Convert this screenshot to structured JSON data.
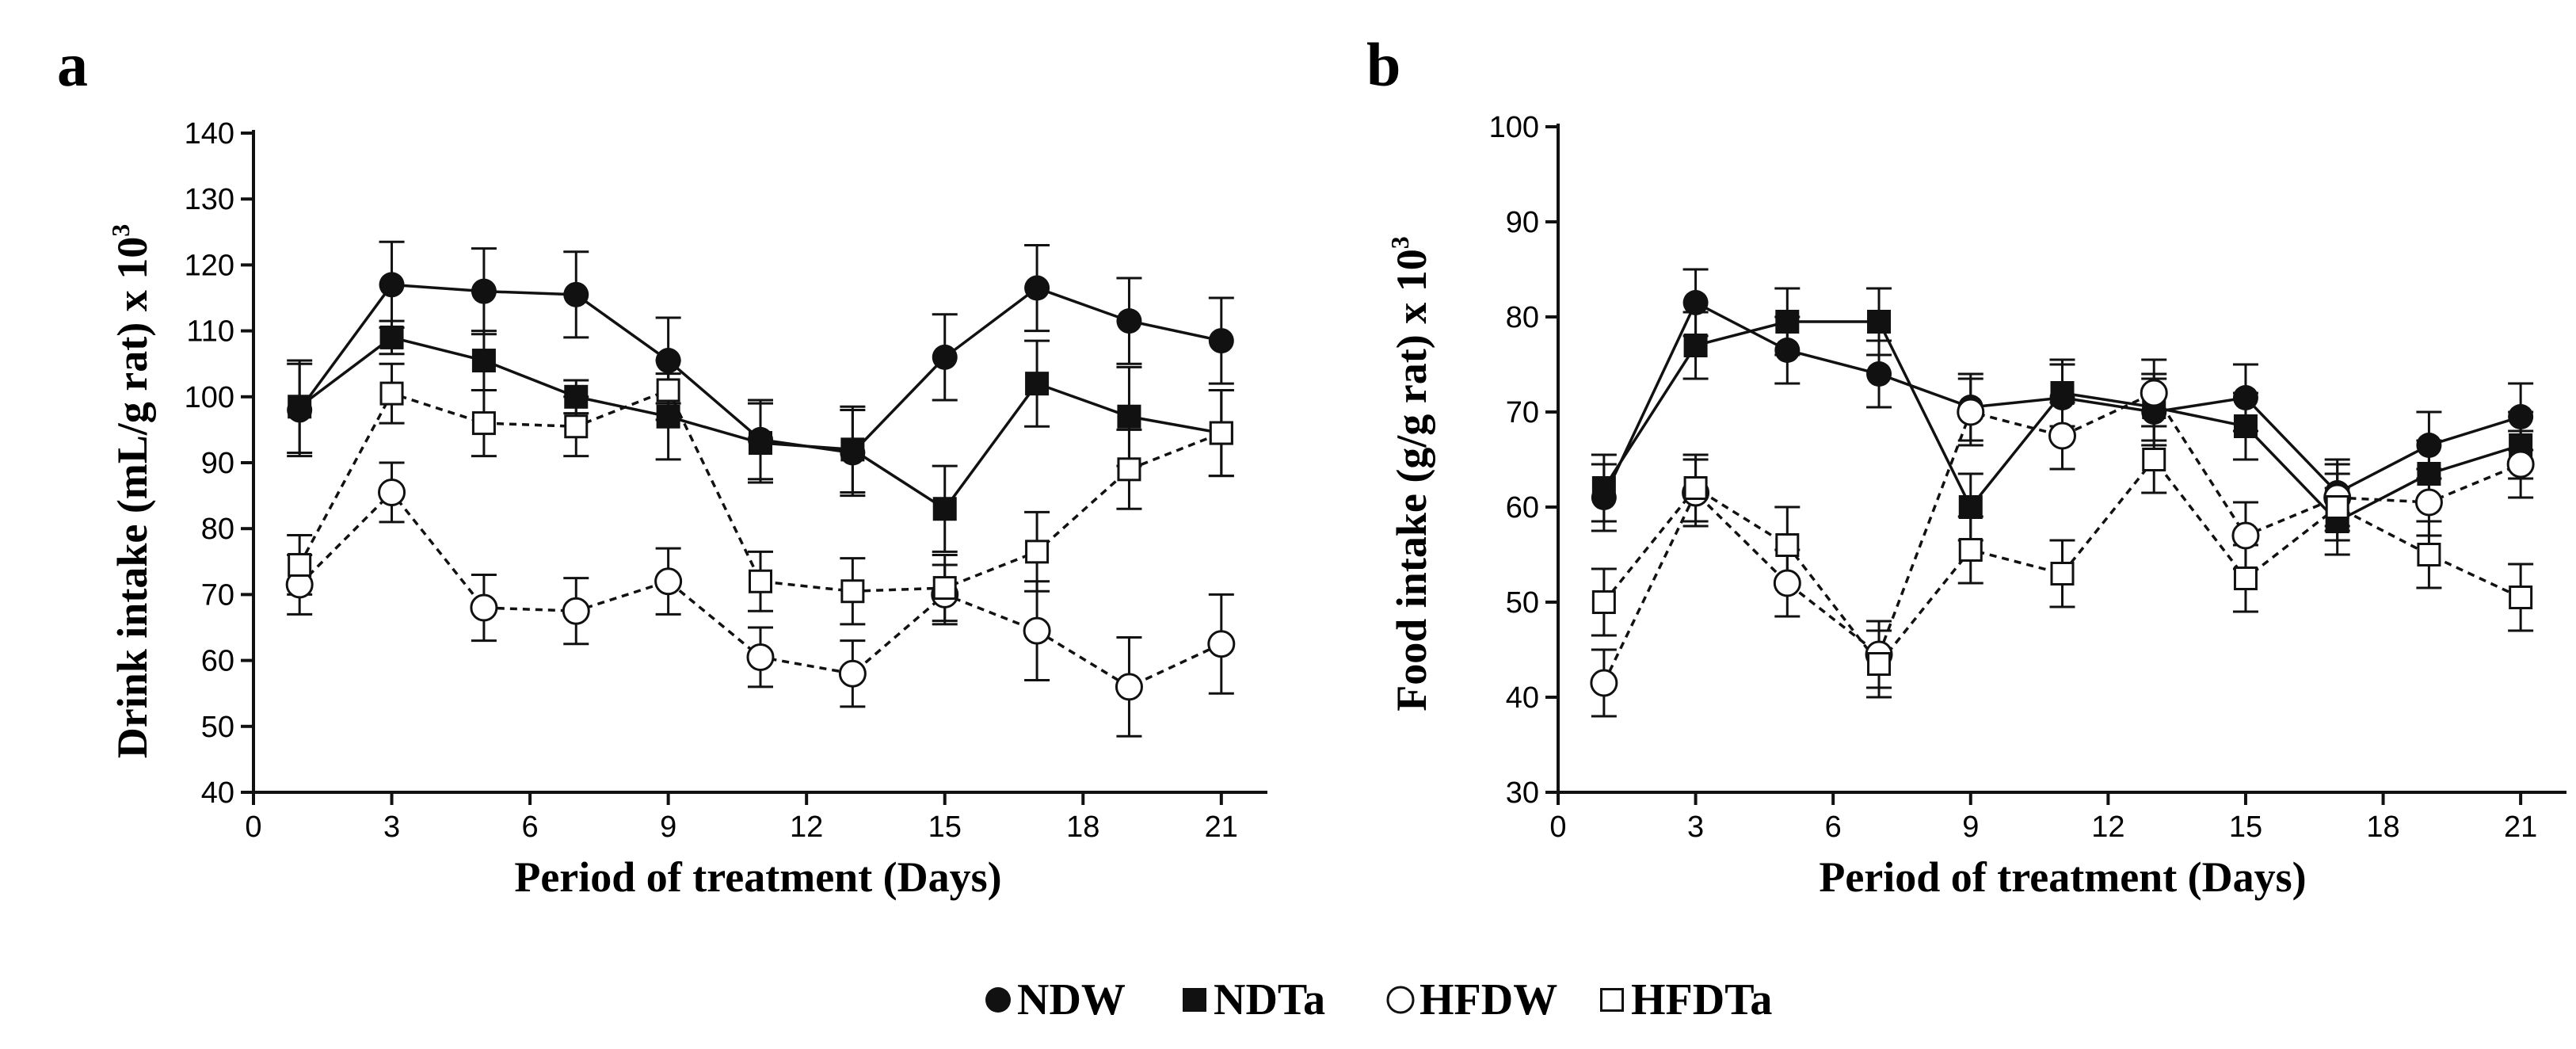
{
  "chart_data": [
    {
      "panel": "a",
      "type": "line",
      "title": "",
      "xlabel": "Period of treatment (Days)",
      "ylabel": "Drink intake (mL/g rat) x 10",
      "ylabel_sup": "3",
      "xlim": [
        0,
        22
      ],
      "ylim": [
        40,
        140
      ],
      "xticks": [
        0,
        3,
        6,
        9,
        12,
        15,
        18,
        21
      ],
      "yticks": [
        40,
        50,
        60,
        70,
        80,
        90,
        100,
        110,
        120,
        130,
        140
      ],
      "x": [
        1,
        3,
        5,
        7,
        9,
        11,
        13,
        15,
        17,
        19,
        21
      ],
      "series": [
        {
          "name": "NDW",
          "marker": "filled-circle",
          "line": "solid",
          "values": [
            98,
            117,
            116,
            115.5,
            105.5,
            93.5,
            91.5,
            106,
            116.5,
            111.5,
            108.5
          ],
          "errors": [
            7,
            6.5,
            6.5,
            6.5,
            6.5,
            6,
            6.5,
            6.5,
            6.5,
            6.5,
            6.5
          ]
        },
        {
          "name": "NDTa",
          "marker": "filled-square",
          "line": "solid",
          "values": [
            98.5,
            109,
            105.5,
            100,
            97,
            93,
            92,
            83,
            102,
            97,
            94.5
          ],
          "errors": [
            7,
            2.5,
            4.5,
            2.5,
            6.5,
            6,
            6.5,
            6.5,
            6.5,
            7.5,
            6.5
          ]
        },
        {
          "name": "HFDW",
          "marker": "open-circle",
          "line": "dashed",
          "values": [
            71.5,
            85.5,
            68,
            67.5,
            72,
            60.5,
            58,
            70,
            64.5,
            56,
            62.5
          ],
          "errors": [
            4.5,
            4.5,
            5,
            5,
            5,
            4.5,
            5,
            4.5,
            7.5,
            7.5,
            7.5
          ]
        },
        {
          "name": "HFDTa",
          "marker": "open-square",
          "line": "dashed",
          "values": [
            74.5,
            100.5,
            96,
            95.5,
            101,
            72,
            70.5,
            71,
            76.5,
            89,
            94.5
          ],
          "errors": [
            4.5,
            4.5,
            5,
            4.5,
            4.5,
            4.5,
            5,
            5,
            6,
            6,
            6.5
          ]
        }
      ]
    },
    {
      "panel": "b",
      "type": "line",
      "title": "",
      "xlabel": "Period of treatment (Days)",
      "ylabel": "Food intake (g/g rat) x 10",
      "ylabel_sup": "3",
      "xlim": [
        0,
        22
      ],
      "ylim": [
        30,
        100
      ],
      "xticks": [
        0,
        3,
        6,
        9,
        12,
        15,
        18,
        21
      ],
      "yticks": [
        30,
        40,
        50,
        60,
        70,
        80,
        90,
        100
      ],
      "x": [
        1,
        3,
        5,
        7,
        9,
        11,
        13,
        15,
        17,
        19,
        21
      ],
      "series": [
        {
          "name": "NDW",
          "marker": "filled-circle",
          "line": "solid",
          "values": [
            61,
            81.5,
            76.5,
            74,
            70.5,
            71.5,
            70,
            71.5,
            61.5,
            66.5,
            69.5
          ],
          "errors": [
            3.5,
            3.5,
            3.5,
            3.5,
            3.5,
            3.5,
            3.5,
            3.5,
            3.5,
            3.5,
            3.5
          ]
        },
        {
          "name": "NDTa",
          "marker": "filled-square",
          "line": "solid",
          "values": [
            62,
            77,
            79.5,
            79.5,
            60,
            72,
            70.5,
            68.5,
            58.5,
            63.5,
            66.5
          ],
          "errors": [
            3.5,
            3.5,
            3.5,
            3.5,
            3.5,
            3.5,
            3.5,
            3.5,
            3.5,
            3.5,
            3.5
          ]
        },
        {
          "name": "HFDW",
          "marker": "open-circle",
          "line": "dashed",
          "values": [
            41.5,
            61.5,
            52,
            44.5,
            70,
            67.5,
            72,
            57,
            61,
            60.5,
            64.5
          ],
          "errors": [
            3.5,
            3.5,
            3.5,
            3.5,
            3.5,
            3.5,
            3.5,
            3.5,
            3.5,
            3.5,
            3.5
          ]
        },
        {
          "name": "HFDTa",
          "marker": "open-square",
          "line": "dashed",
          "values": [
            50,
            62,
            56,
            43.5,
            55.5,
            53,
            65,
            52.5,
            60,
            55,
            50.5
          ],
          "errors": [
            3.5,
            3.5,
            4,
            3.5,
            3.5,
            3.5,
            3.5,
            3.5,
            3.5,
            3.5,
            3.5
          ]
        }
      ]
    }
  ],
  "legend": {
    "items": [
      {
        "name": "NDW",
        "marker": "filled-circle"
      },
      {
        "name": "NDTa",
        "marker": "filled-square"
      },
      {
        "name": "HFDW",
        "marker": "open-circle"
      },
      {
        "name": "HFDTa",
        "marker": "open-square"
      }
    ]
  },
  "colors": {
    "ink": "#111111",
    "background": "#ffffff"
  }
}
